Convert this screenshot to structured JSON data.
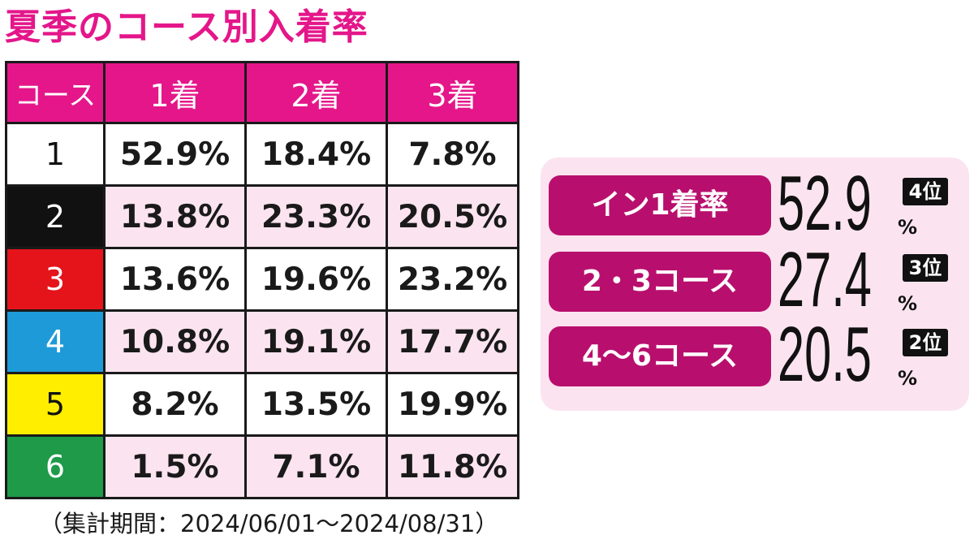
{
  "title": "夏季のコース別入着率",
  "chart_data": {
    "type": "table",
    "columns": [
      "コース",
      "1着",
      "2着",
      "3着"
    ],
    "rows": [
      {
        "course": "1",
        "color": "#ffffff",
        "text_color": "#111111",
        "values": [
          "52.9%",
          "18.4%",
          "7.8%"
        ]
      },
      {
        "course": "2",
        "color": "#111111",
        "text_color": "#ffffff",
        "values": [
          "13.8%",
          "23.3%",
          "20.5%"
        ]
      },
      {
        "course": "3",
        "color": "#e5141b",
        "text_color": "#ffffff",
        "values": [
          "13.6%",
          "19.6%",
          "23.2%"
        ]
      },
      {
        "course": "4",
        "color": "#1f9ad8",
        "text_color": "#ffffff",
        "values": [
          "10.8%",
          "19.1%",
          "17.7%"
        ]
      },
      {
        "course": "5",
        "color": "#ffee00",
        "text_color": "#111111",
        "values": [
          "8.2%",
          "13.5%",
          "19.9%"
        ]
      },
      {
        "course": "6",
        "color": "#1e9a48",
        "text_color": "#ffffff",
        "values": [
          "1.5%",
          "7.1%",
          "11.8%"
        ]
      }
    ]
  },
  "period": "（集計期間：2024/06/01〜2024/08/31）",
  "summary": [
    {
      "label": "イン1着率",
      "value": "52.9",
      "unit": "%",
      "rank": "4位"
    },
    {
      "label": "2・3コース",
      "value": "27.4",
      "unit": "%",
      "rank": "3位"
    },
    {
      "label": "4〜6コース",
      "value": "20.5",
      "unit": "%",
      "rank": "2位"
    }
  ],
  "colors": {
    "accent": "#e4168a",
    "label_bg": "#b80f6e",
    "panel_bg": "#fbe4ef"
  }
}
